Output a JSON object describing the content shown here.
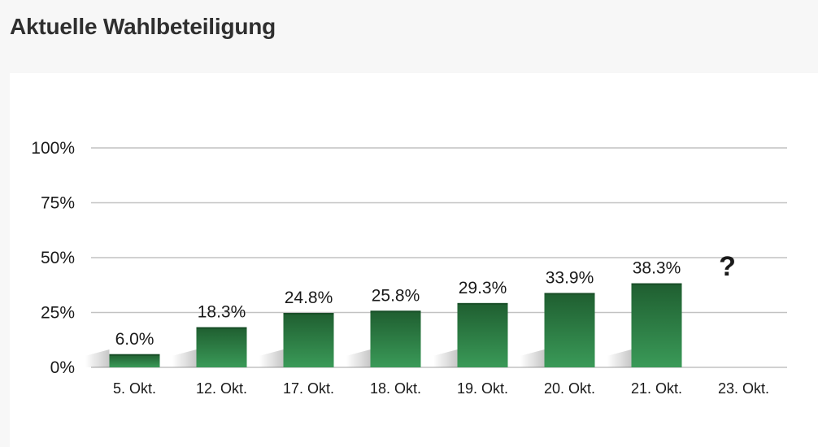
{
  "header": {
    "title": "Aktuelle Wahlbeteiligung"
  },
  "chart_data": {
    "type": "bar",
    "title": "",
    "xlabel": "",
    "ylabel": "",
    "categories": [
      "5. Okt.",
      "12. Okt.",
      "17. Okt.",
      "18. Okt.",
      "19. Okt.",
      "20. Okt.",
      "21. Okt.",
      "23. Okt."
    ],
    "values": [
      6.0,
      18.3,
      24.8,
      25.8,
      29.3,
      33.9,
      38.3,
      null
    ],
    "value_labels": [
      "6.0%",
      "18.3%",
      "24.8%",
      "25.8%",
      "29.3%",
      "33.9%",
      "38.3%",
      "?"
    ],
    "ylim": [
      0,
      100
    ],
    "y_ticks": [
      0,
      25,
      50,
      75,
      100
    ],
    "y_tick_labels": [
      "0%",
      "25%",
      "50%",
      "75%",
      "100%"
    ],
    "grid": true,
    "legend": "none",
    "colors": {
      "bar_top": "#1f5e30",
      "bar_bottom": "#3a9a58",
      "grid": "#c2c2c2",
      "shadow": "#d2d2d2",
      "text": "#1a1a1a"
    }
  }
}
